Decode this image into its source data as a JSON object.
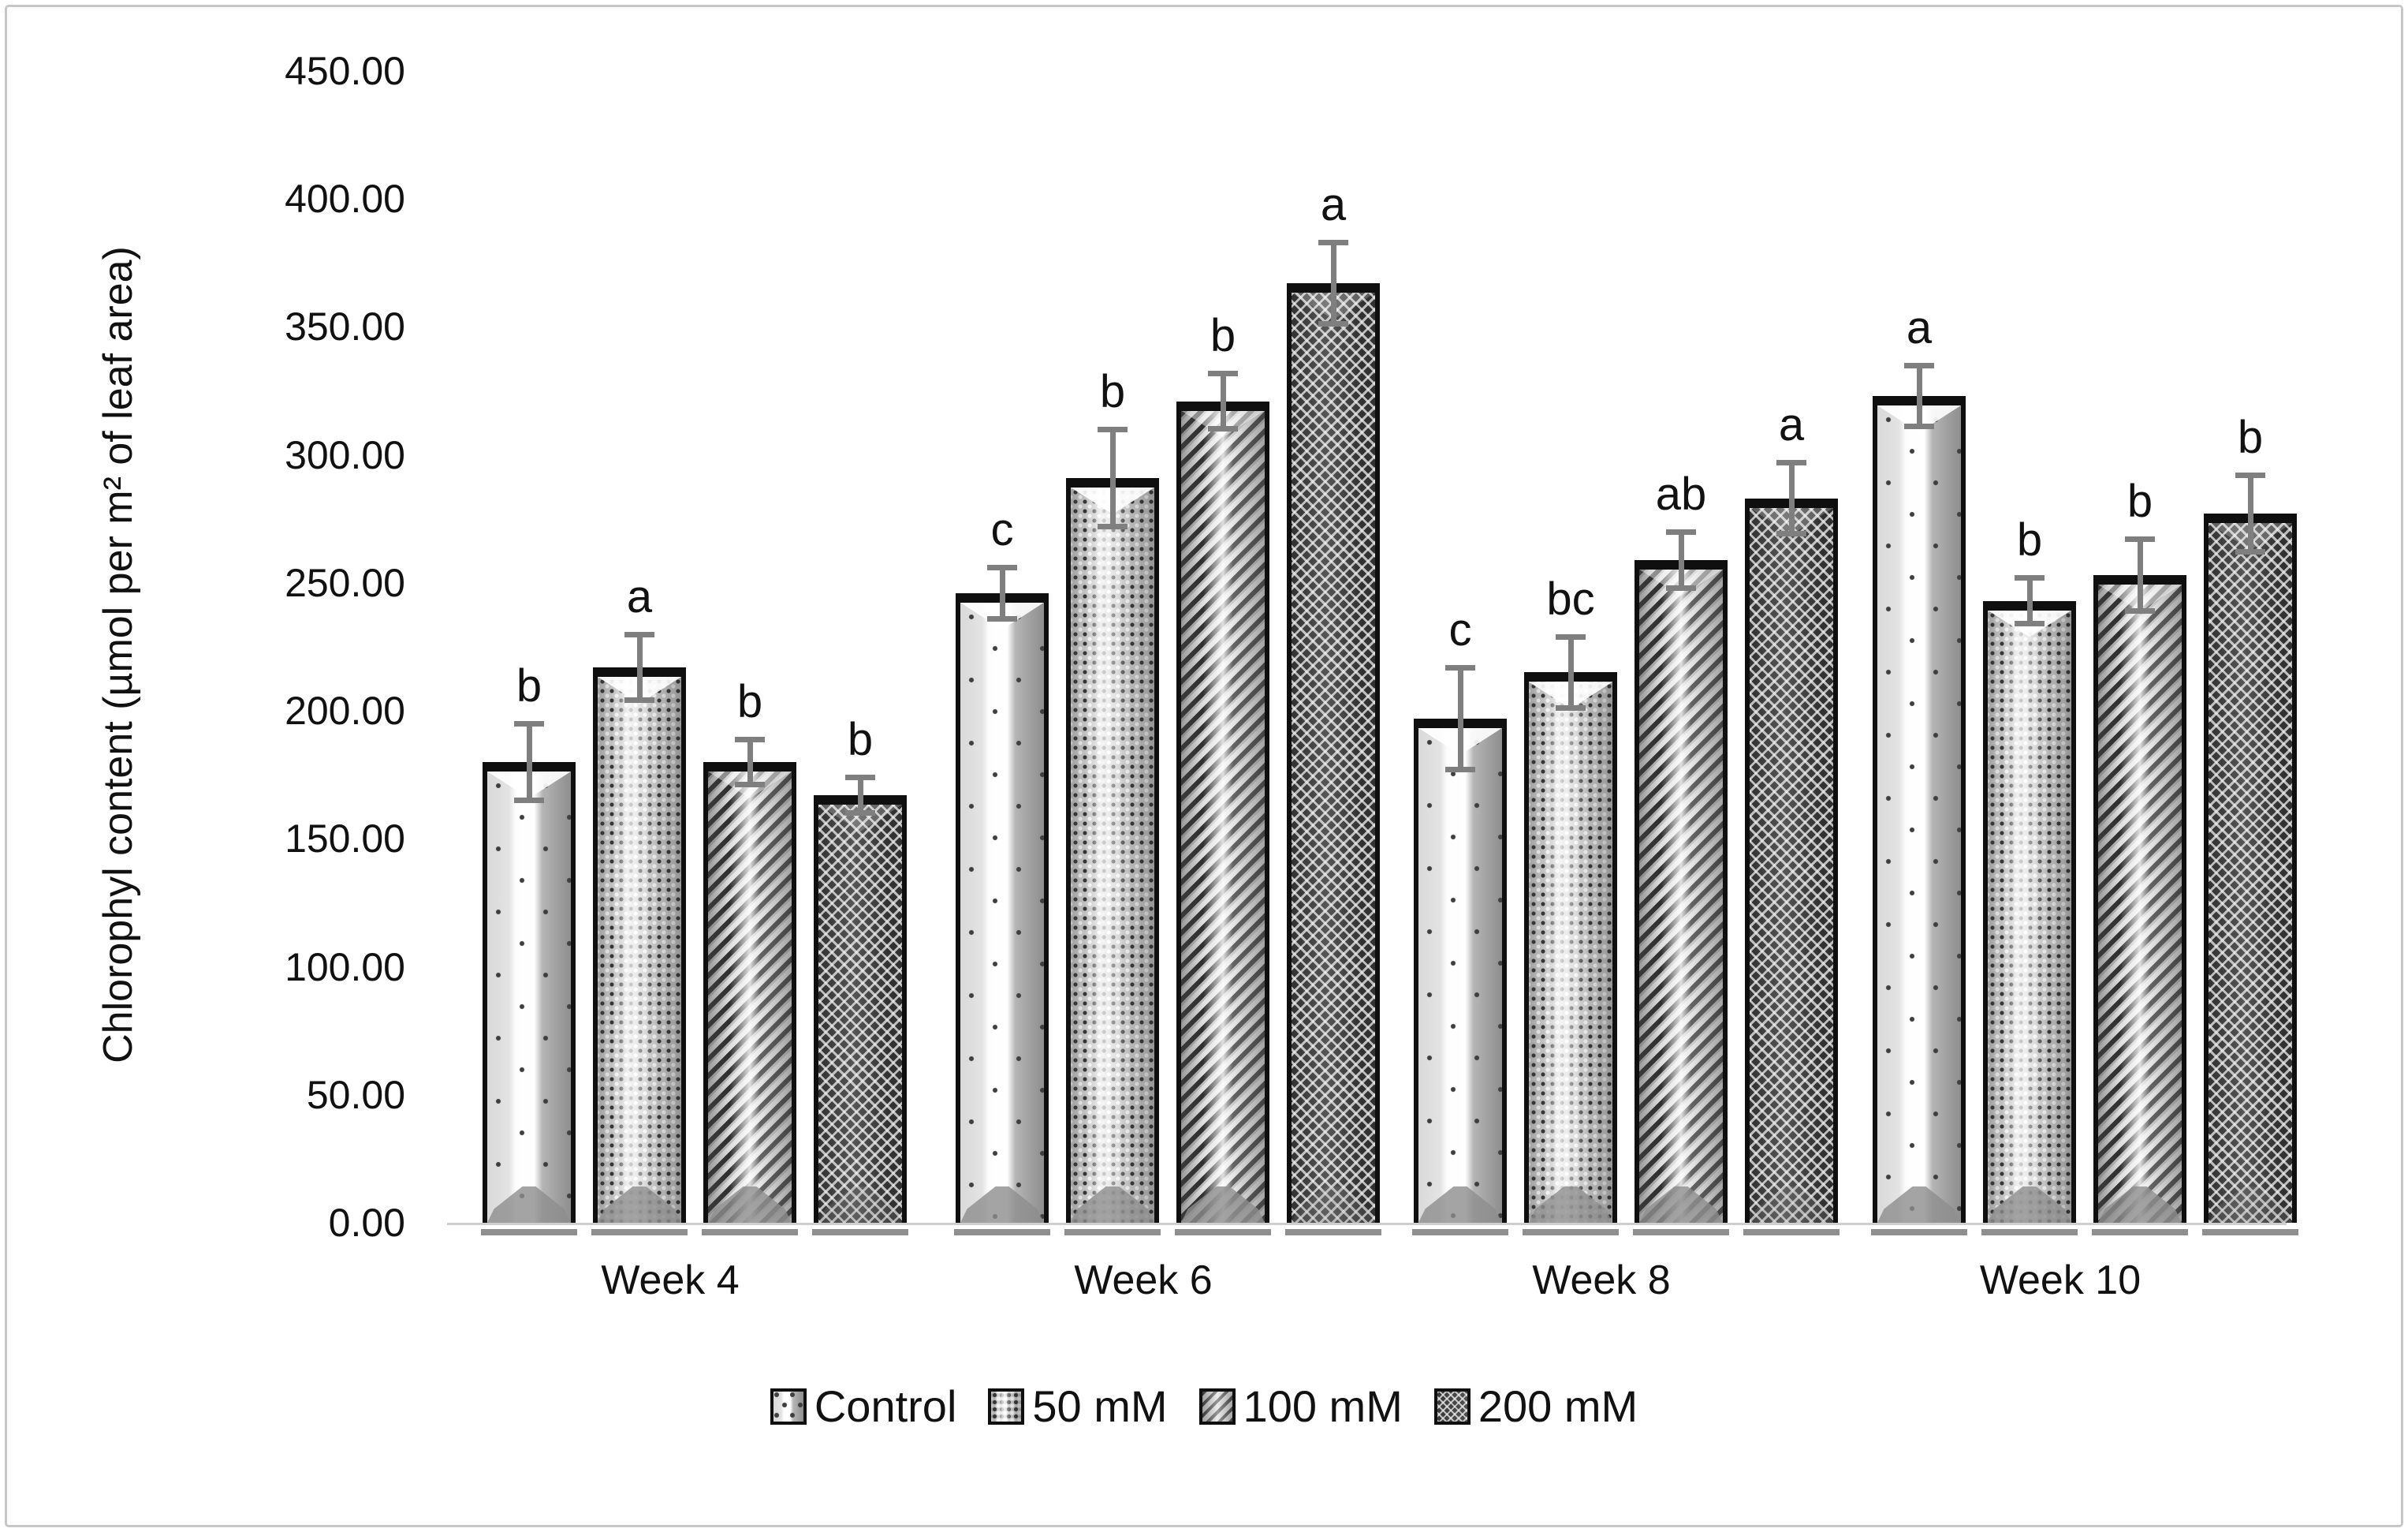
{
  "figure": {
    "kind": "grouped-bar-chart-figure",
    "background": "#ffffff",
    "frame_border_color": "#c7c7c7"
  },
  "colors": {
    "axis_text": "#111111",
    "error_bar": "#7f7f7f",
    "baseline": "#cfcfcf",
    "bar_border": "#0f0f0f",
    "bar_shadow": "#8f8f8f"
  },
  "chart_data": {
    "type": "bar",
    "title": "",
    "xlabel": "",
    "ylabel": "Chlorophyl content (µmol per m² of leaf area)",
    "categories": [
      "Week 4",
      "Week 6",
      "Week 8",
      "Week 10"
    ],
    "series": [
      {
        "name": "Control",
        "pattern": "sparse-dots-3d",
        "values": [
          180,
          246,
          197,
          323
        ],
        "errors": [
          16,
          11,
          21,
          13
        ],
        "sig_letters": [
          "b",
          "c",
          "c",
          "a"
        ]
      },
      {
        "name": "50 mM",
        "pattern": "dense-dots",
        "values": [
          217,
          291,
          215,
          243
        ],
        "errors": [
          14,
          20,
          15,
          10
        ],
        "sig_letters": [
          "a",
          "b",
          "bc",
          "b"
        ]
      },
      {
        "name": "100 mM",
        "pattern": "diagonal-stripes",
        "values": [
          180,
          321,
          259,
          253
        ],
        "errors": [
          10,
          12,
          12,
          15
        ],
        "sig_letters": [
          "b",
          "b",
          "ab",
          "b"
        ]
      },
      {
        "name": "200 mM",
        "pattern": "dark-weave",
        "values": [
          167,
          367,
          283,
          277
        ],
        "errors": [
          8,
          17,
          15,
          16
        ],
        "sig_letters": [
          "b",
          "a",
          "a",
          "b"
        ]
      }
    ],
    "ylim": [
      0,
      450
    ],
    "ytick_step": 50,
    "ytick_labels": [
      "0.00",
      "50.00",
      "100.00",
      "150.00",
      "200.00",
      "250.00",
      "300.00",
      "350.00",
      "400.00",
      "450.00"
    ],
    "grid": false,
    "legend_position": "bottom",
    "error_bars": true,
    "annotations": "significance letters above error bars"
  },
  "legend": {
    "items": [
      {
        "label": "Control"
      },
      {
        "label": "50 mM"
      },
      {
        "label": "100 mM"
      },
      {
        "label": "200 mM"
      }
    ]
  }
}
